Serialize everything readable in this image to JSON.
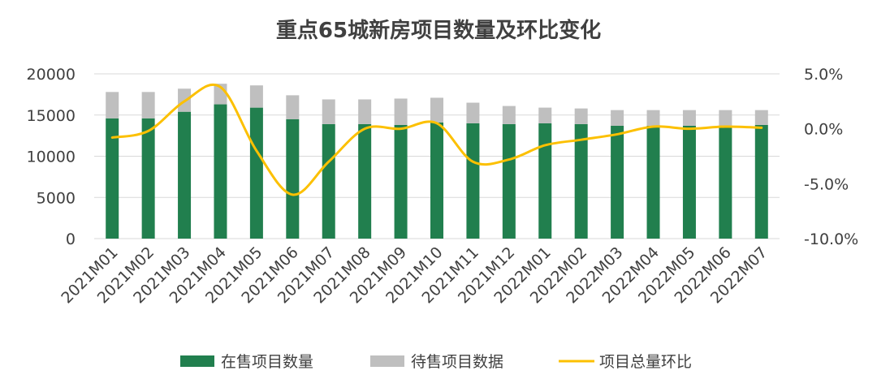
{
  "chart_data": {
    "type": "bar",
    "title": "重点65城新房项目数量及环比变化",
    "categories": [
      "2021M01",
      "2021M02",
      "2021M03",
      "2021M04",
      "2021M05",
      "2021M06",
      "2021M07",
      "2021M08",
      "2021M09",
      "2021M10",
      "2021M11",
      "2021M12",
      "2022M01",
      "2022M02",
      "2022M03",
      "2022M04",
      "2022M05",
      "2022M06",
      "2022M07"
    ],
    "stacked": true,
    "y_left": {
      "ylim": [
        0,
        20000
      ],
      "ticks": [
        "20000",
        "15000",
        "10000",
        "5000",
        "0"
      ]
    },
    "y_right": {
      "ylim": [
        -10.0,
        5.0
      ],
      "unit": "%",
      "ticks": [
        "5.0%",
        "0.0%",
        "-5.0%",
        "-10.0%"
      ]
    },
    "grid": true,
    "legend_position": "bottom",
    "series": [
      {
        "name": "在售项目数量",
        "kind": "bar",
        "axis": "left",
        "color": "#217f4e",
        "values": [
          14600,
          14600,
          15400,
          16300,
          15900,
          14500,
          13900,
          13900,
          13800,
          14100,
          14000,
          13900,
          14000,
          13900,
          13700,
          13700,
          13700,
          13700,
          13800
        ]
      },
      {
        "name": "待售项目数据",
        "kind": "bar",
        "axis": "left",
        "color": "#bfbfbf",
        "values": [
          3200,
          3200,
          2800,
          2500,
          2700,
          2900,
          3000,
          3000,
          3200,
          3000,
          2500,
          2200,
          1900,
          1900,
          1900,
          1900,
          1900,
          1900,
          1800
        ]
      },
      {
        "name": "项目总量环比",
        "kind": "line",
        "axis": "right",
        "color": "#fcc000",
        "values": [
          -0.8,
          -0.2,
          2.5,
          3.8,
          -2.0,
          -6.0,
          -3.0,
          0.0,
          0.0,
          0.5,
          -3.0,
          -2.8,
          -1.5,
          -1.0,
          -0.5,
          0.2,
          0.0,
          0.2,
          0.1
        ]
      }
    ]
  }
}
